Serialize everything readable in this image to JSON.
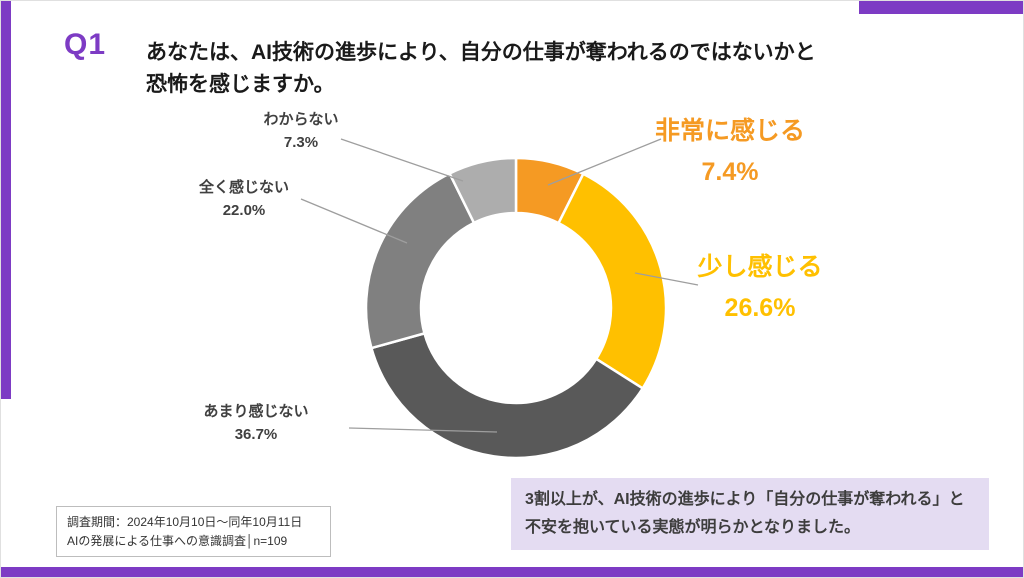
{
  "colors": {
    "purple": "#7D3BC4",
    "callout_bg": "#E4DCF2",
    "leader_line": "#9E9E9E",
    "title_text": "#1A1A1A"
  },
  "header": {
    "q_label": "Q1",
    "title_line1": "あなたは、AI技術の進歩により、自分の仕事が奪われるのではないかと",
    "title_line2": "恐怖を感じますか。"
  },
  "chart_data": {
    "type": "pie",
    "subtype": "donut",
    "start_angle_deg": 0,
    "clockwise": true,
    "inner_radius_ratio": 0.63,
    "segments": [
      {
        "label": "非常に感じる",
        "value": 7.4,
        "pct_label": "7.4%",
        "color": "#F59A23",
        "emphasized": true
      },
      {
        "label": "少し感じる",
        "value": 26.6,
        "pct_label": "26.6%",
        "color": "#FFC000",
        "emphasized": true
      },
      {
        "label": "あまり感じない",
        "value": 36.7,
        "pct_label": "36.7%",
        "color": "#595959",
        "emphasized": false
      },
      {
        "label": "全く感じない",
        "value": 22.0,
        "pct_label": "22.0%",
        "color": "#808080",
        "emphasized": false
      },
      {
        "label": "わからない",
        "value": 7.3,
        "pct_label": "7.3%",
        "color": "#ADADAD",
        "emphasized": false
      }
    ]
  },
  "footer": {
    "line1": "調査期間：2024年10月10日〜同年10月11日",
    "line2": "AIの発展による仕事への意識調査│n=109"
  },
  "callout": {
    "line1": "3割以上が、AI技術の進歩により「自分の仕事が奪われる」と",
    "line2": "不安を抱いている実態が明らかとなりました。"
  }
}
